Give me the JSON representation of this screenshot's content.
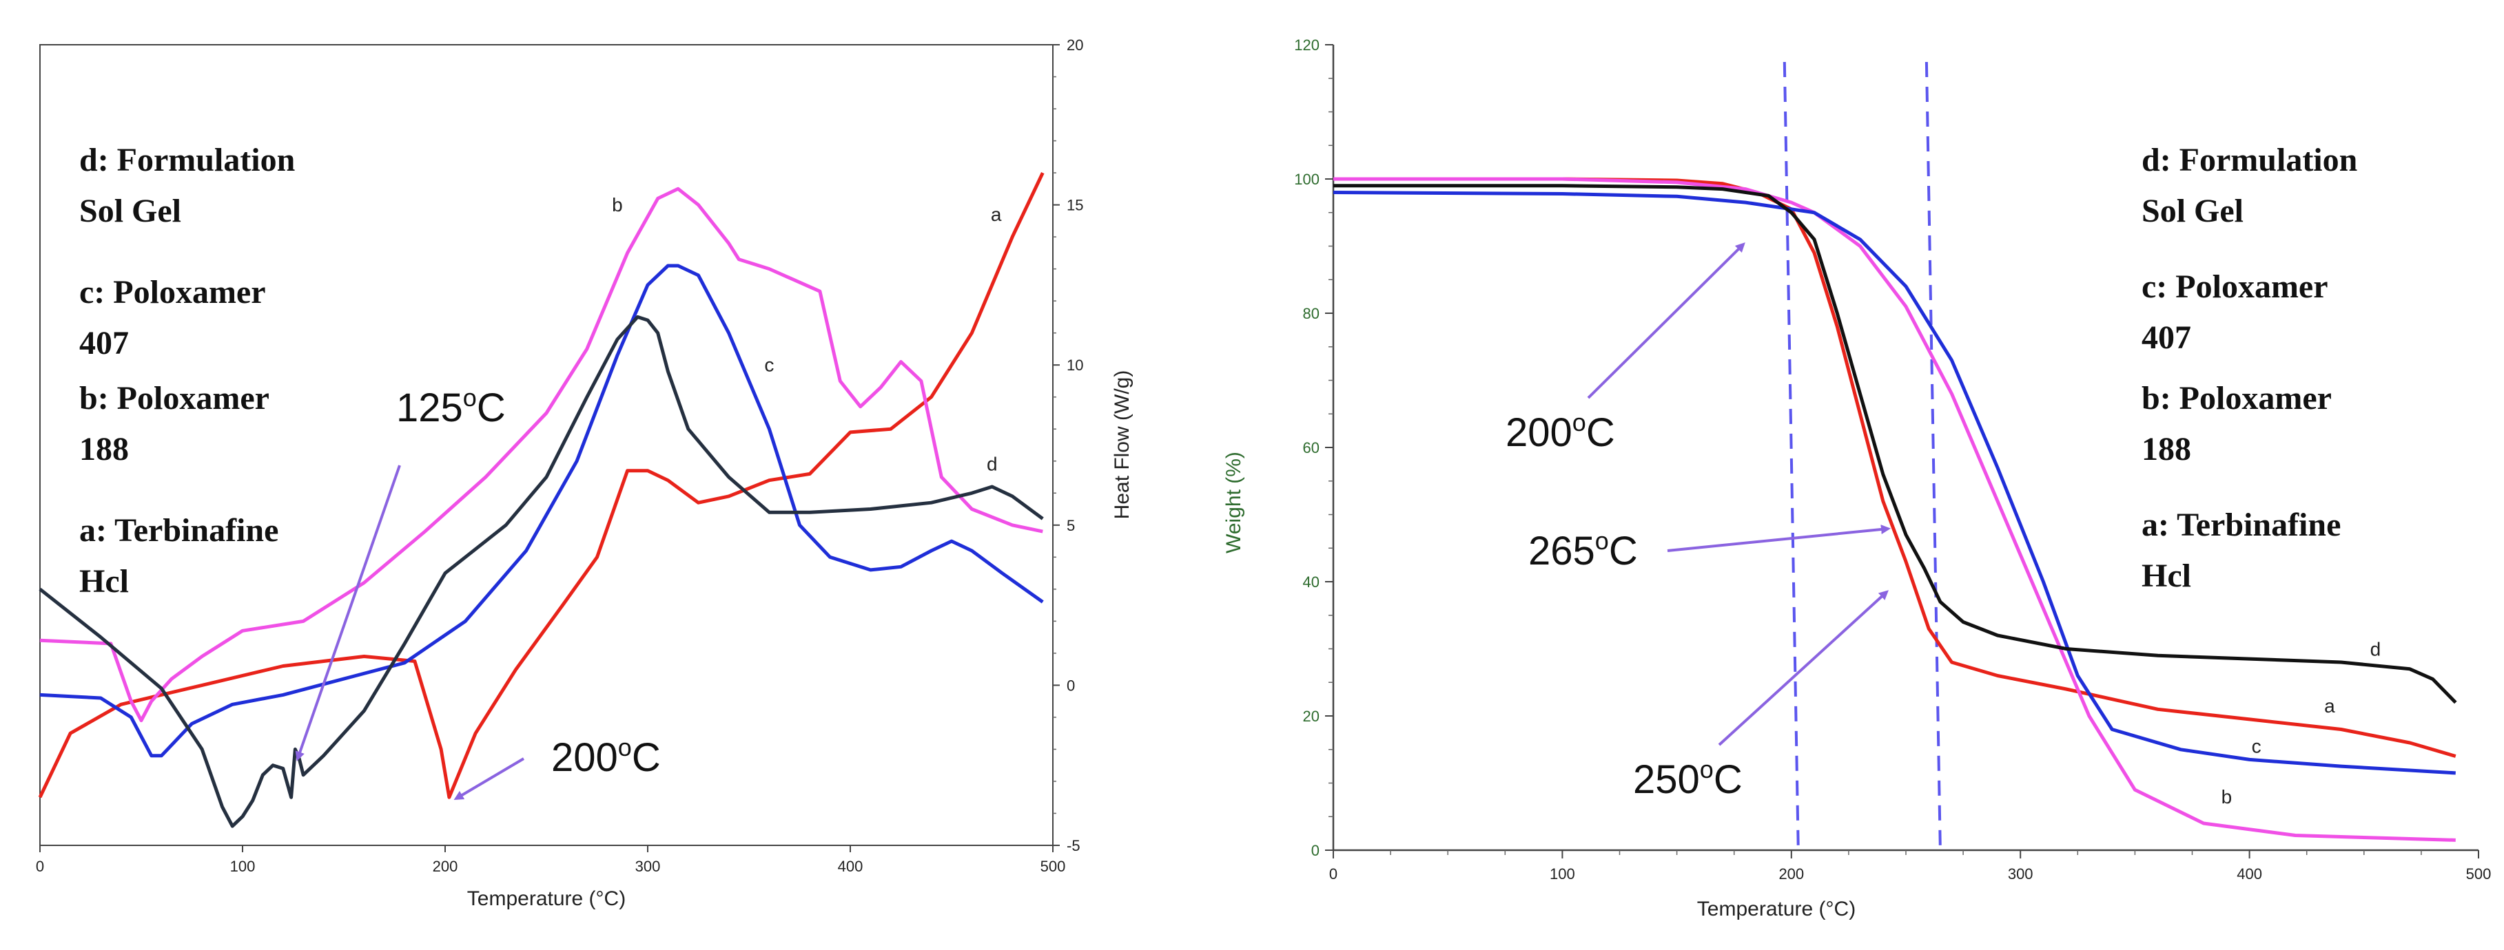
{
  "chart_data": [
    {
      "type": "line",
      "name": "DSC",
      "xlabel": "Temperature (°C)",
      "ylabel": "Heat Flow (W/g)",
      "xlim": [
        0,
        500
      ],
      "ylim": [
        -5,
        20
      ],
      "xticks": [
        0,
        100,
        200,
        300,
        400,
        500
      ],
      "yticks": [
        20,
        15,
        10,
        5,
        0,
        -5
      ],
      "legend": [
        "d: Formulation",
        "Sol Gel",
        "c: Poloxamer",
        "407",
        "b: Poloxamer",
        "188",
        "a: Terbinafine",
        "Hcl"
      ],
      "annotations": [
        {
          "text": "125",
          "sup": "o",
          "unit": "C",
          "x": 125,
          "y": -2.3
        },
        {
          "text": "200",
          "sup": "o",
          "unit": "C",
          "x": 205,
          "y": -3.5
        }
      ],
      "series": [
        {
          "name": "a",
          "color": "#e8231a",
          "label_at": [
            472,
            14.5
          ],
          "x": [
            0,
            15,
            40,
            80,
            120,
            160,
            185,
            198,
            202,
            215,
            235,
            258,
            275,
            290,
            300,
            310,
            325,
            340,
            360,
            380,
            400,
            420,
            440,
            460,
            480,
            495
          ],
          "y": [
            -3.5,
            -1.5,
            -0.6,
            0.0,
            0.6,
            0.9,
            0.75,
            -2.0,
            -3.5,
            -1.5,
            0.5,
            2.5,
            4.0,
            6.7,
            6.7,
            6.4,
            5.7,
            5.9,
            6.4,
            6.6,
            7.9,
            8.0,
            9.0,
            11.0,
            14.0,
            16.0
          ]
        },
        {
          "name": "b",
          "color": "#f050e6",
          "label_at": [
            285,
            14.8
          ],
          "x": [
            0,
            35,
            45,
            50,
            55,
            65,
            80,
            100,
            130,
            160,
            190,
            220,
            250,
            270,
            290,
            305,
            315,
            325,
            340,
            345,
            360,
            385,
            395,
            405,
            415,
            425,
            435,
            445,
            460,
            480,
            495
          ],
          "y": [
            1.4,
            1.3,
            -0.5,
            -1.1,
            -0.5,
            0.2,
            0.9,
            1.7,
            2.0,
            3.2,
            4.8,
            6.5,
            8.5,
            10.5,
            13.5,
            15.2,
            15.5,
            15.0,
            13.8,
            13.3,
            13.0,
            12.3,
            9.5,
            8.7,
            9.3,
            10.1,
            9.5,
            6.5,
            5.5,
            5.0,
            4.8
          ]
        },
        {
          "name": "c",
          "color": "#1f2ed8",
          "label_at": [
            360,
            9.8
          ],
          "x": [
            0,
            30,
            45,
            55,
            60,
            75,
            95,
            120,
            150,
            180,
            210,
            240,
            265,
            285,
            300,
            310,
            315,
            325,
            340,
            360,
            375,
            390,
            410,
            425,
            440,
            450,
            460,
            475,
            495
          ],
          "y": [
            -0.3,
            -0.4,
            -1.0,
            -2.2,
            -2.2,
            -1.2,
            -0.6,
            -0.3,
            0.2,
            0.7,
            2.0,
            4.2,
            7.0,
            10.3,
            12.5,
            13.1,
            13.1,
            12.8,
            11.0,
            8.0,
            5.0,
            4.0,
            3.6,
            3.7,
            4.2,
            4.5,
            4.2,
            3.5,
            2.6
          ]
        },
        {
          "name": "d",
          "color": "#253040",
          "label_at": [
            470,
            6.7
          ],
          "x": [
            0,
            30,
            60,
            80,
            90,
            95,
            100,
            105,
            110,
            115,
            120,
            124,
            126,
            128,
            130,
            140,
            160,
            180,
            200,
            210,
            230,
            250,
            270,
            285,
            295,
            300,
            305,
            310,
            320,
            340,
            360,
            380,
            410,
            440,
            460,
            470,
            480,
            495
          ],
          "y": [
            3.0,
            1.5,
            -0.1,
            -2.0,
            -3.8,
            -4.4,
            -4.1,
            -3.6,
            -2.8,
            -2.5,
            -2.6,
            -3.5,
            -2.0,
            -2.3,
            -2.8,
            -2.2,
            -0.8,
            1.3,
            3.5,
            4.0,
            5.0,
            6.5,
            9.0,
            10.8,
            11.5,
            11.4,
            11.0,
            9.8,
            8.0,
            6.5,
            5.4,
            5.4,
            5.5,
            5.7,
            6.0,
            6.2,
            5.9,
            5.2
          ]
        }
      ]
    },
    {
      "type": "line",
      "name": "TGA",
      "xlabel": "Temperature (°C)",
      "ylabel": "Weight (%)",
      "xlim": [
        0,
        500
      ],
      "ylim": [
        0,
        120
      ],
      "xticks": [
        0,
        100,
        200,
        300,
        400,
        500
      ],
      "yticks": [
        0,
        20,
        40,
        60,
        80,
        100,
        120
      ],
      "vlines": [
        200,
        262
      ],
      "legend": [
        "d: Formulation",
        "Sol Gel",
        "c: Poloxamer",
        "407",
        "b: Poloxamer",
        "188",
        "a: Terbinafine",
        "Hcl"
      ],
      "annotations": [
        {
          "text": "200",
          "sup": "o",
          "unit": "C",
          "x": 195,
          "y": 90
        },
        {
          "text": "265",
          "sup": "o",
          "unit": "C",
          "x": 245,
          "y": 47
        },
        {
          "text": "250",
          "sup": "o",
          "unit": "C",
          "x": 243,
          "y": 38
        }
      ],
      "series": [
        {
          "name": "a",
          "color": "#e8231a",
          "label_at": [
            435,
            20.5
          ],
          "x": [
            0,
            100,
            150,
            170,
            185,
            200,
            210,
            220,
            230,
            240,
            250,
            255,
            260,
            270,
            290,
            320,
            360,
            400,
            440,
            470,
            490
          ],
          "y": [
            100,
            100,
            99.8,
            99.3,
            98,
            95.5,
            89,
            78,
            65,
            52,
            43,
            38,
            33,
            28,
            26,
            24,
            21,
            19.5,
            18,
            16,
            14
          ]
        },
        {
          "name": "b",
          "color": "#f050e6",
          "label_at": [
            390,
            7
          ],
          "x": [
            0,
            100,
            150,
            180,
            200,
            210,
            230,
            250,
            270,
            290,
            310,
            330,
            350,
            380,
            420,
            460,
            490
          ],
          "y": [
            100,
            100,
            99.5,
            98.5,
            96.5,
            95,
            90,
            81,
            68,
            52,
            36,
            20,
            9,
            4,
            2.2,
            1.8,
            1.5
          ]
        },
        {
          "name": "c",
          "color": "#1f2ed8",
          "label_at": [
            403,
            14.5
          ],
          "x": [
            0,
            100,
            150,
            180,
            200,
            210,
            230,
            250,
            270,
            290,
            310,
            325,
            340,
            370,
            400,
            440,
            490
          ],
          "y": [
            98,
            97.8,
            97.4,
            96.5,
            95.5,
            95,
            91,
            84,
            73,
            57,
            40,
            26,
            18,
            15,
            13.5,
            12.5,
            11.5
          ]
        },
        {
          "name": "d",
          "color": "#111111",
          "label_at": [
            455,
            29
          ],
          "x": [
            0,
            100,
            150,
            170,
            190,
            200,
            210,
            220,
            230,
            240,
            250,
            258,
            265,
            275,
            290,
            320,
            360,
            400,
            440,
            470,
            480,
            490
          ],
          "y": [
            99,
            99,
            98.8,
            98.5,
            97.5,
            95,
            91,
            80,
            68,
            56,
            47,
            42,
            37,
            34,
            32,
            30,
            29,
            28.5,
            28,
            27,
            25.5,
            22
          ]
        }
      ]
    }
  ]
}
